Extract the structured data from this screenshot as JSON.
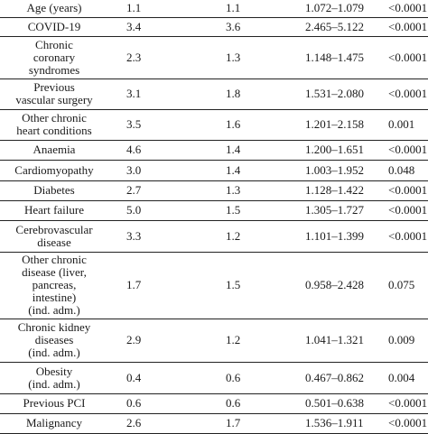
{
  "table": {
    "rows": [
      {
        "name": [
          "Age (years)"
        ],
        "v1": "1.1",
        "v2": "1.1",
        "ci": "1.072–1.079",
        "p": "<0.0001",
        "h": 20
      },
      {
        "name": [
          "COVID-19"
        ],
        "v1": "3.4",
        "v2": "3.6",
        "ci": "2.465–5.122",
        "p": "<0.0001",
        "h": 21
      },
      {
        "name": [
          "Chronic",
          "coronary",
          "syndromes"
        ],
        "v1": "2.3",
        "v2": "1.3",
        "ci": "1.148–1.475",
        "p": "<0.0001",
        "h": 47
      },
      {
        "name": [
          "Previous",
          "vascular surgery"
        ],
        "v1": "3.1",
        "v2": "1.8",
        "ci": "1.531–2.080",
        "p": "<0.0001",
        "h": 34
      },
      {
        "name": [
          "Other chronic",
          "heart conditions"
        ],
        "v1": "3.5",
        "v2": "1.6",
        "ci": "1.201–2.158",
        "p": "0.001",
        "h": 34
      },
      {
        "name": [
          "Anaemia"
        ],
        "v1": "4.6",
        "v2": "1.4",
        "ci": "1.200–1.651",
        "p": "<0.0001",
        "h": 22
      },
      {
        "name": [
          "Cardiomyopathy"
        ],
        "v1": "3.0",
        "v2": "1.4",
        "ci": "1.003–1.952",
        "p": "0.048",
        "h": 23
      },
      {
        "name": [
          "Diabetes"
        ],
        "v1": "2.7",
        "v2": "1.3",
        "ci": "1.128–1.422",
        "p": "<0.0001",
        "h": 22
      },
      {
        "name": [
          "Heart failure"
        ],
        "v1": "5.0",
        "v2": "1.5",
        "ci": "1.305–1.727",
        "p": "<0.0001",
        "h": 22
      },
      {
        "name": [
          "Cerebrovascular",
          "disease"
        ],
        "v1": "3.3",
        "v2": "1.2",
        "ci": "1.101–1.399",
        "p": "<0.0001",
        "h": 35
      },
      {
        "name": [
          "Other chronic",
          "disease (liver,",
          "pancreas,",
          "intestine)",
          "(ind. adm.)"
        ],
        "v1": "1.7",
        "v2": "1.5",
        "ci": "0.958–2.428",
        "p": "0.075",
        "h": 74
      },
      {
        "name": [
          "Chronic kidney",
          "diseases",
          "(ind. adm.)"
        ],
        "v1": "2.9",
        "v2": "1.2",
        "ci": "1.041–1.321",
        "p": "0.009",
        "h": 48
      },
      {
        "name": [
          "Obesity",
          "(ind. adm.)"
        ],
        "v1": "0.4",
        "v2": "0.6",
        "ci": "0.467–0.862",
        "p": "0.004",
        "h": 35
      },
      {
        "name": [
          "Previous PCI"
        ],
        "v1": "0.6",
        "v2": "0.6",
        "ci": "0.501–0.638",
        "p": "<0.0001",
        "h": 22
      },
      {
        "name": [
          "Malignancy"
        ],
        "v1": "2.6",
        "v2": "1.7",
        "ci": "1.536–1.911",
        "p": "<0.0001",
        "h": 22
      }
    ]
  }
}
